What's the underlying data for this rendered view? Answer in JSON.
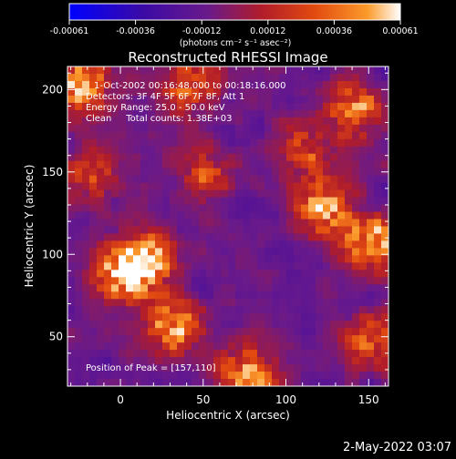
{
  "chart_data": {
    "type": "heatmap",
    "title": "Reconstructed RHESSI Image",
    "xlabel": "Heliocentric X (arcsec)",
    "ylabel": "Heliocentric Y (arcsec)",
    "xlim": [
      -32,
      162
    ],
    "ylim": [
      20,
      214
    ],
    "xticks": [
      0,
      50,
      100,
      150
    ],
    "yticks": [
      50,
      100,
      150,
      200
    ],
    "colorbar": {
      "ticks": [
        "-0.00061",
        "-0.00036",
        "-0.00012",
        "0.00012",
        "0.00036",
        "0.00061"
      ],
      "units_line": "(photons cm⁻² s⁻¹ asec⁻²)",
      "range": [
        -0.00061,
        0.00061
      ],
      "colormap": [
        "#0000ff",
        "#3a0aa6",
        "#6a1a8a",
        "#b01c2a",
        "#e24a10",
        "#fb9a2a",
        "#ffffff"
      ]
    },
    "annotations": [
      "1-Oct-2002 00:16:48.000 to 00:18:16.000",
      "Detectors: 3F 4F 5F 6F 7F 8F, Att 1",
      "Energy Range: 25.0 - 50.0 keV",
      "Clean     Total counts: 1.38E+03"
    ],
    "peak_label": "Position of Peak = [157,110]",
    "peak": [
      157,
      110
    ],
    "image_cells_note": "Smoothed CLEAN map; bright sources near (0,90), (30,60), (120,130), (150,110), (70,30)"
  },
  "timestamp": "2-May-2022 03:07"
}
